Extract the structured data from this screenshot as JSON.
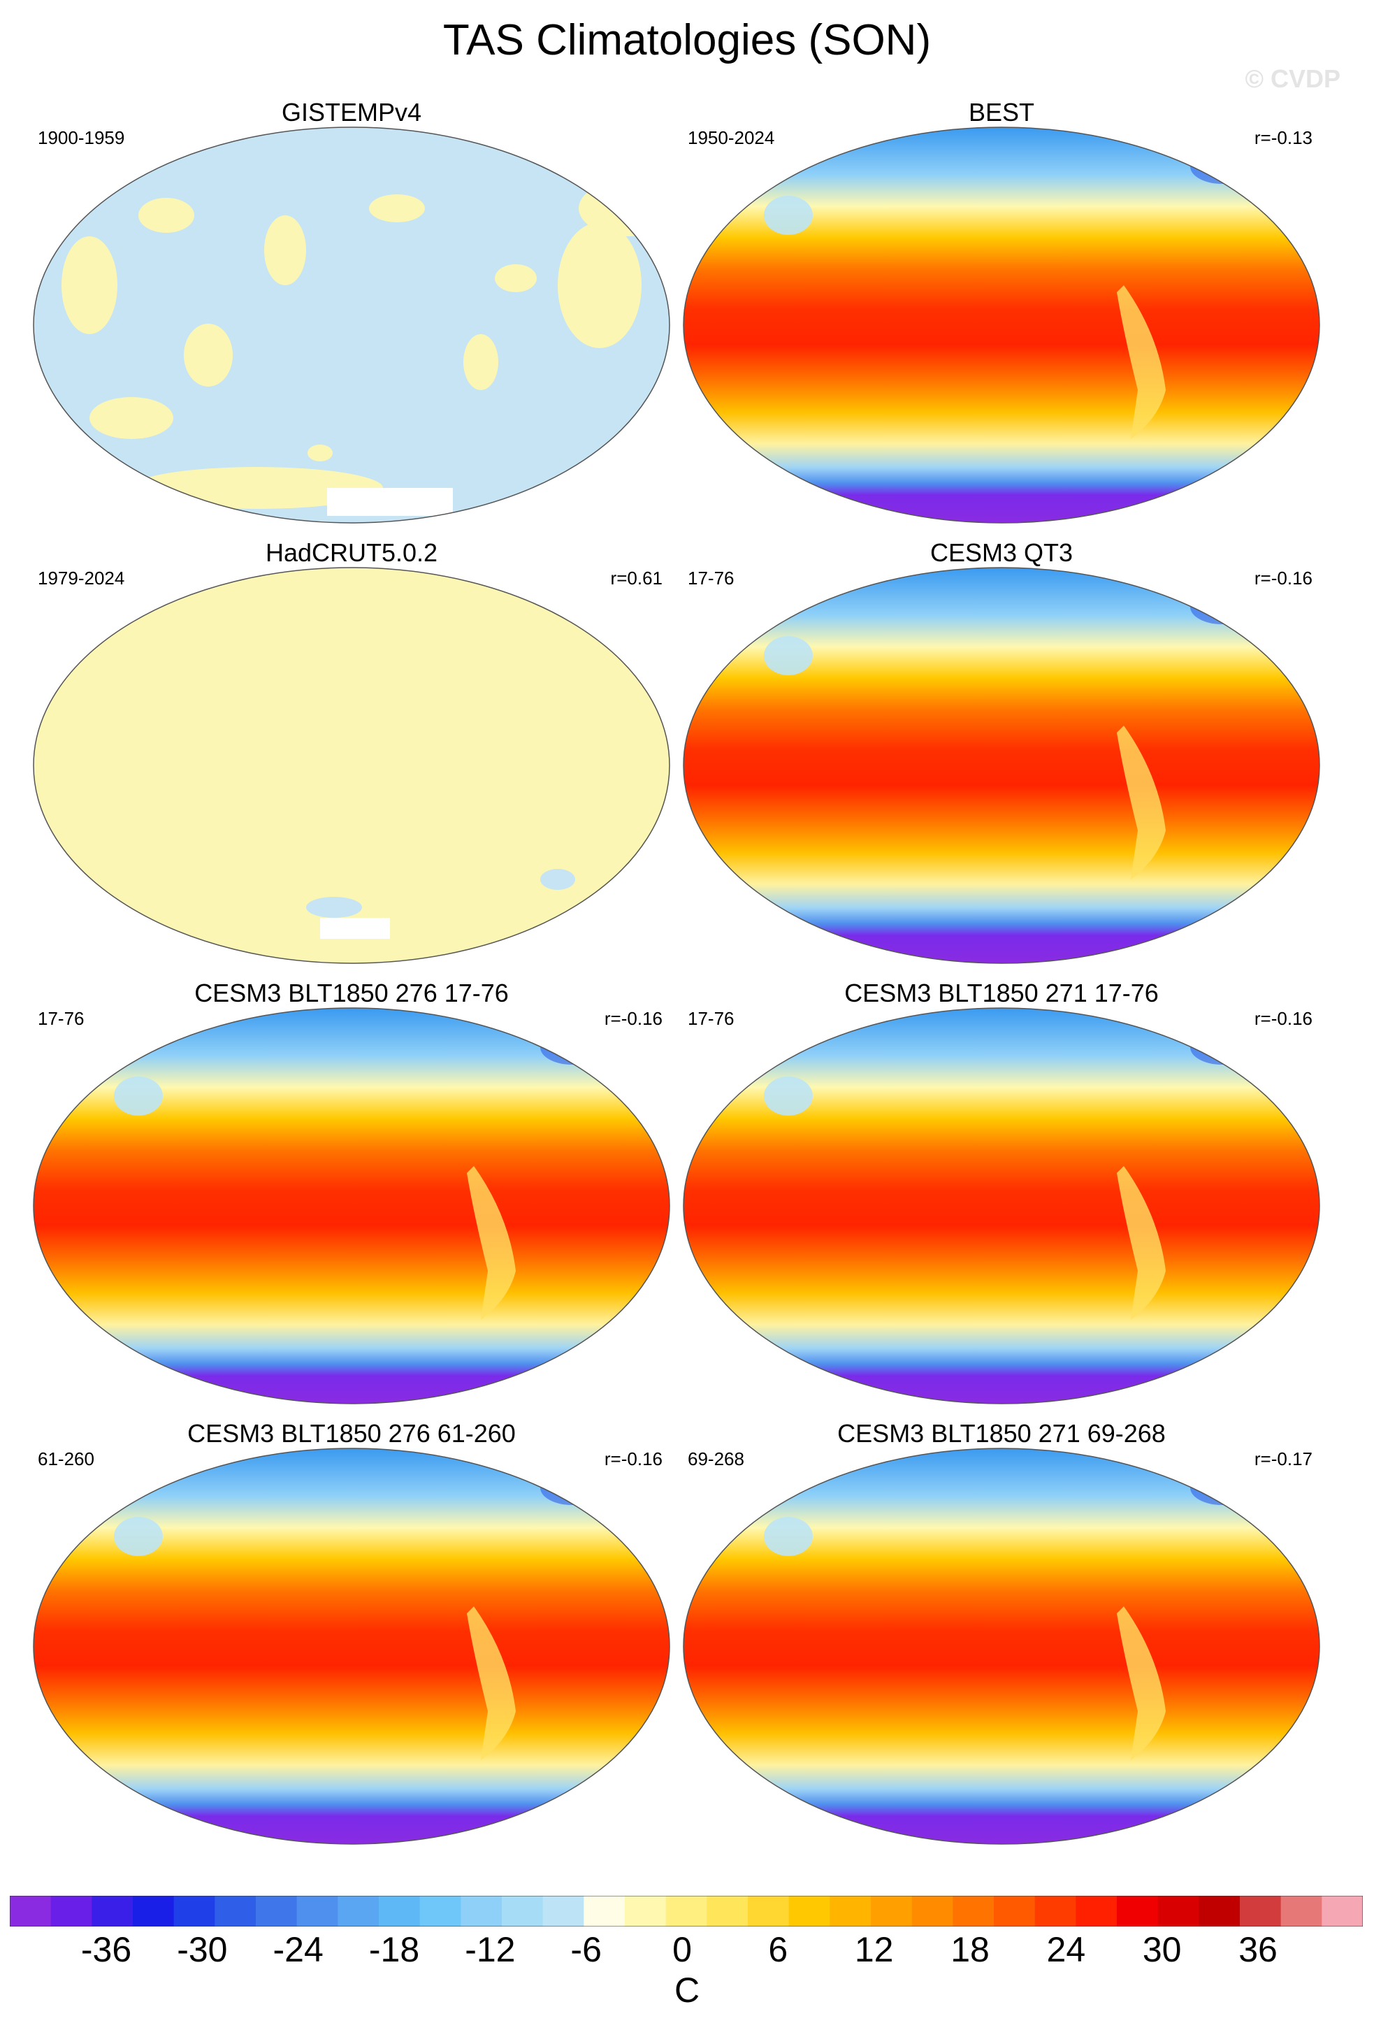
{
  "title": "TAS Climatologies (SON)",
  "watermark": "© CVDP",
  "panels": [
    {
      "title": "GISTEMPv4",
      "period": "1900-1959",
      "r": "",
      "style": "gis"
    },
    {
      "title": "BEST",
      "period": "1950-2024",
      "r": "r=-0.13",
      "style": "best"
    },
    {
      "title": "HadCRUT5.0.2",
      "period": "1979-2024",
      "r": "r=0.61",
      "style": "had"
    },
    {
      "title": "CESM3 QT3",
      "period": "17-76",
      "r": "r=-0.16",
      "style": "model"
    },
    {
      "title": "CESM3 BLT1850 276 17-76",
      "period": "17-76",
      "r": "r=-0.16",
      "style": "model"
    },
    {
      "title": "CESM3 BLT1850 271 17-76",
      "period": "17-76",
      "r": "r=-0.16",
      "style": "model"
    },
    {
      "title": "CESM3 BLT1850 276 61-260",
      "period": "61-260",
      "r": "r=-0.16",
      "style": "model"
    },
    {
      "title": "CESM3 BLT1850 271 69-268",
      "period": "69-268",
      "r": "r=-0.17",
      "style": "model"
    }
  ],
  "colorbar": {
    "unit": "C",
    "tick_labels": [
      "-36",
      "-30",
      "-24",
      "-18",
      "-12",
      "-6",
      "0",
      "6",
      "12",
      "18",
      "24",
      "30",
      "36"
    ],
    "colors": [
      "#8a2be2",
      "#6a1fe8",
      "#3a1fe8",
      "#1a1fe8",
      "#1f3fe8",
      "#2f5fe8",
      "#3f77ea",
      "#4f8fee",
      "#5aa6f2",
      "#5fb8f6",
      "#6fc6f8",
      "#8fd0f8",
      "#a6dcf6",
      "#bde4f6",
      "#fffde6",
      "#fff8b0",
      "#ffef80",
      "#ffe55a",
      "#ffd730",
      "#ffc800",
      "#ffb400",
      "#ffa000",
      "#ff8c00",
      "#ff7400",
      "#ff5a00",
      "#ff3c00",
      "#ff2000",
      "#f00000",
      "#d80000",
      "#c00000",
      "#d23c3c",
      "#e67878",
      "#f5a8b4"
    ]
  }
}
